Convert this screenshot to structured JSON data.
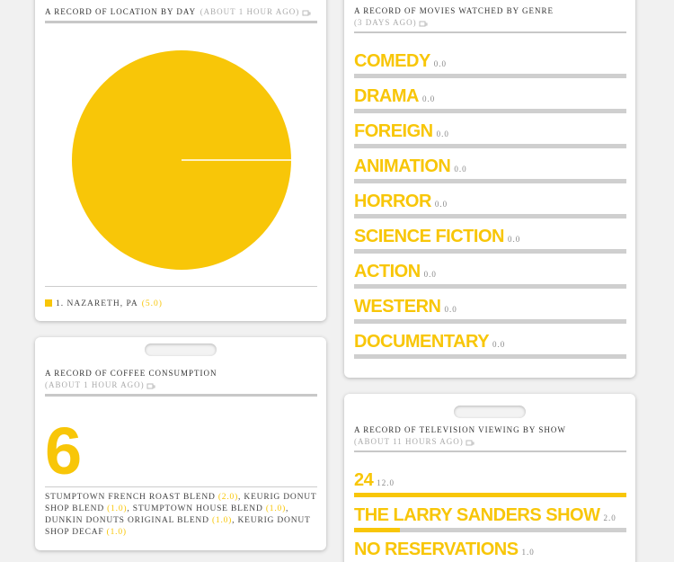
{
  "location": {
    "title": "A RECORD OF LOCATION BY DAY",
    "time": "(ABOUT 1 HOUR AGO)",
    "chart_data": {
      "type": "pie",
      "categories": [
        "1. NAZARETH, PA"
      ],
      "values": [
        5
      ],
      "value_labels": [
        "(5.0)"
      ],
      "color": "#f8c608"
    }
  },
  "coffee": {
    "title": "A RECORD OF COFFEE CONSUMPTION",
    "time": "(ABOUT 1 HOUR AGO)",
    "total": "6",
    "items": [
      {
        "name": "STUMPTOWN FRENCH ROAST BLEND",
        "count": "(2.0)"
      },
      {
        "name": "KEURIG DONUT SHOP BLEND",
        "count": "(1.0)"
      },
      {
        "name": "STUMPTOWN HOUSE BLEND",
        "count": "(1.0)"
      },
      {
        "name": "DUNKIN DONUTS ORIGINAL BLEND",
        "count": "(1.0)"
      },
      {
        "name": "KEURIG DONUT SHOP DECAF",
        "count": "(1.0)"
      }
    ]
  },
  "movies": {
    "title": "A RECORD OF MOVIES WATCHED BY GENRE",
    "time": "(3 DAYS AGO)",
    "chart_data": {
      "type": "bar",
      "categories": [
        "COMEDY",
        "DRAMA",
        "FOREIGN",
        "ANIMATION",
        "HORROR",
        "SCIENCE FICTION",
        "ACTION",
        "WESTERN",
        "DOCUMENTARY"
      ],
      "values": [
        0,
        0,
        0,
        0,
        0,
        0,
        0,
        0,
        0
      ],
      "value_labels": [
        "0.0",
        "0.0",
        "0.0",
        "0.0",
        "0.0",
        "0.0",
        "0.0",
        "0.0",
        "0.0"
      ],
      "color": "#f8c608"
    }
  },
  "tv": {
    "title": "A RECORD OF TELEVISION VIEWING BY SHOW",
    "time": "(ABOUT 11 HOURS AGO)",
    "chart_data": {
      "type": "bar",
      "categories": [
        "24",
        "THE LARRY SANDERS SHOW",
        "NO RESERVATIONS"
      ],
      "values": [
        12,
        2,
        1
      ],
      "value_labels": [
        "12.0",
        "2.0",
        "1.0"
      ],
      "color": "#f8c608"
    }
  }
}
